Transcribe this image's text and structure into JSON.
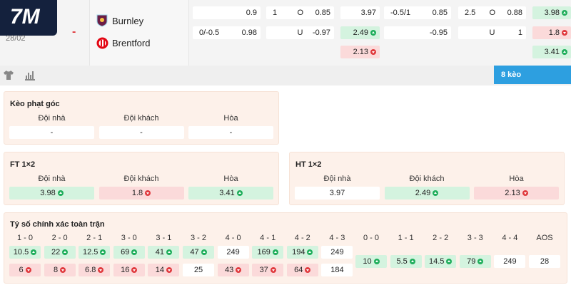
{
  "header": {
    "logo": "7M",
    "date": "28/02",
    "score": "-",
    "home": "Burnley",
    "away": "Brentford"
  },
  "odds": {
    "rows": [
      [
        {
          "value": "0.9"
        },
        {
          "line": "1",
          "side": "O",
          "value": "0.85"
        },
        {
          "value": "3.97"
        },
        {
          "line": "-0.5/1",
          "value": "0.85"
        },
        {
          "line": "2.5",
          "side": "O",
          "value": "0.88"
        },
        {
          "value": "3.98",
          "trend": "up"
        }
      ],
      [
        {
          "line": "0/-0.5",
          "value": "0.98"
        },
        {
          "side": "U",
          "value": "-0.97"
        },
        {
          "value": "2.49",
          "trend": "up"
        },
        {
          "value": "-0.95"
        },
        {
          "side": "U",
          "value": "1"
        },
        {
          "value": "1.8",
          "trend": "down"
        }
      ],
      [
        null,
        null,
        {
          "value": "2.13",
          "trend": "down"
        },
        null,
        null,
        {
          "value": "3.41",
          "trend": "up"
        }
      ]
    ]
  },
  "toolbar": {
    "button": "8 kèo"
  },
  "corners": {
    "title": "Kèo phạt góc",
    "headers": [
      "Đội nhà",
      "Đội khách",
      "Hòa"
    ],
    "values": [
      {
        "value": "-"
      },
      {
        "value": "-"
      },
      {
        "value": "-"
      }
    ]
  },
  "ft": {
    "title": "FT 1×2",
    "headers": [
      "Đội nhà",
      "Đội khách",
      "Hòa"
    ],
    "values": [
      {
        "value": "3.98",
        "trend": "up"
      },
      {
        "value": "1.8",
        "trend": "down"
      },
      {
        "value": "3.41",
        "trend": "up"
      }
    ]
  },
  "ht": {
    "title": "HT 1×2",
    "headers": [
      "Đội nhà",
      "Đội khách",
      "Hòa"
    ],
    "values": [
      {
        "value": "3.97"
      },
      {
        "value": "2.49",
        "trend": "up"
      },
      {
        "value": "2.13",
        "trend": "down"
      }
    ]
  },
  "exact": {
    "title": "Tỷ số chính xác toàn trận",
    "groups": [
      {
        "scores": [
          "1 - 0",
          "2 - 0",
          "2 - 1",
          "3 - 0",
          "3 - 1",
          "3 - 2",
          "4 - 0",
          "4 - 1",
          "4 - 2",
          "4 - 3"
        ],
        "rows": [
          [
            {
              "value": "10.5",
              "trend": "up"
            },
            {
              "value": "22",
              "trend": "up"
            },
            {
              "value": "12.5",
              "trend": "up"
            },
            {
              "value": "69",
              "trend": "up"
            },
            {
              "value": "41",
              "trend": "up"
            },
            {
              "value": "47",
              "trend": "up"
            },
            {
              "value": "249"
            },
            {
              "value": "169",
              "trend": "up"
            },
            {
              "value": "194",
              "trend": "up"
            },
            {
              "value": "249"
            }
          ],
          [
            {
              "value": "6",
              "trend": "down"
            },
            {
              "value": "8",
              "trend": "down"
            },
            {
              "value": "6.8",
              "trend": "down"
            },
            {
              "value": "16",
              "trend": "down"
            },
            {
              "value": "14",
              "trend": "down"
            },
            {
              "value": "25"
            },
            {
              "value": "43",
              "trend": "down"
            },
            {
              "value": "37",
              "trend": "down"
            },
            {
              "value": "64",
              "trend": "down"
            },
            {
              "value": "184"
            }
          ]
        ]
      },
      {
        "scores": [
          "0 - 0",
          "1 - 1",
          "2 - 2",
          "3 - 3",
          "4 - 4",
          "AOS"
        ],
        "rows": [
          [
            {
              "value": "10",
              "trend": "up"
            },
            {
              "value": "5.5",
              "trend": "up"
            },
            {
              "value": "14.5",
              "trend": "up"
            },
            {
              "value": "79",
              "trend": "up"
            },
            {
              "value": "249"
            },
            {
              "value": "28"
            }
          ]
        ]
      }
    ]
  }
}
